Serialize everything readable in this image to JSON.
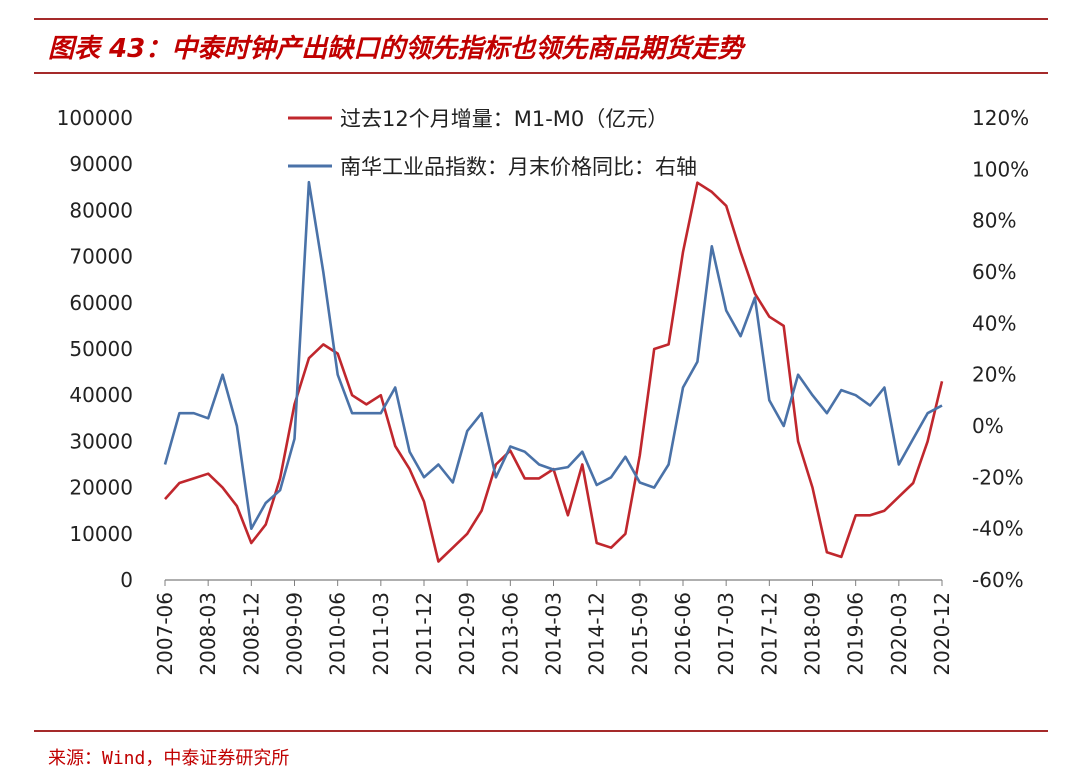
{
  "header": {
    "title": "图表 43：中泰时钟产出缺口的领先指标也领先商品期货走势"
  },
  "footer": {
    "source": "来源：Wind，中泰证券研究所"
  },
  "colors": {
    "series_m1m0": "#c0272d",
    "series_nh": "#4a72a8",
    "accent": "#c00000"
  },
  "chart_data": {
    "type": "line",
    "title": "",
    "legend_position": "top-center",
    "grid": false,
    "left_axis": {
      "min": 0,
      "max": 100000,
      "ticks": [
        0,
        10000,
        20000,
        30000,
        40000,
        50000,
        60000,
        70000,
        80000,
        90000,
        100000
      ]
    },
    "right_axis": {
      "min": -60,
      "max": 120,
      "unit": "%",
      "ticks": [
        -60,
        -40,
        -20,
        0,
        20,
        40,
        60,
        80,
        100,
        120
      ],
      "tick_labels": [
        "-60%",
        "-40%",
        "-20%",
        "0%",
        "20%",
        "40%",
        "60%",
        "80%",
        "100%",
        "120%"
      ]
    },
    "x_ticks": [
      "2007-06",
      "2008-03",
      "2008-12",
      "2009-09",
      "2010-06",
      "2011-03",
      "2011-12",
      "2012-09",
      "2013-06",
      "2014-03",
      "2014-12",
      "2015-09",
      "2016-06",
      "2017-03",
      "2017-12",
      "2018-09",
      "2019-06",
      "2020-03",
      "2020-12"
    ],
    "series": [
      {
        "name": "过去12个月增量：M1-M0（亿元）",
        "axis": "left",
        "points": [
          [
            "2007-06",
            17500
          ],
          [
            "2007-09",
            21000
          ],
          [
            "2007-12",
            22000
          ],
          [
            "2008-03",
            23000
          ],
          [
            "2008-06",
            20000
          ],
          [
            "2008-09",
            16000
          ],
          [
            "2008-12",
            8000
          ],
          [
            "2009-03",
            12000
          ],
          [
            "2009-06",
            22000
          ],
          [
            "2009-09",
            38000
          ],
          [
            "2009-12",
            48000
          ],
          [
            "2010-03",
            51000
          ],
          [
            "2010-06",
            49000
          ],
          [
            "2010-09",
            40000
          ],
          [
            "2010-12",
            38000
          ],
          [
            "2011-03",
            40000
          ],
          [
            "2011-06",
            29000
          ],
          [
            "2011-09",
            24000
          ],
          [
            "2011-12",
            17000
          ],
          [
            "2012-03",
            4000
          ],
          [
            "2012-06",
            7000
          ],
          [
            "2012-09",
            10000
          ],
          [
            "2012-12",
            15000
          ],
          [
            "2013-03",
            25000
          ],
          [
            "2013-06",
            28000
          ],
          [
            "2013-09",
            22000
          ],
          [
            "2013-12",
            22000
          ],
          [
            "2014-03",
            24000
          ],
          [
            "2014-06",
            14000
          ],
          [
            "2014-09",
            25000
          ],
          [
            "2014-12",
            8000
          ],
          [
            "2015-03",
            7000
          ],
          [
            "2015-06",
            10000
          ],
          [
            "2015-09",
            27000
          ],
          [
            "2015-12",
            50000
          ],
          [
            "2016-03",
            51000
          ],
          [
            "2016-06",
            71000
          ],
          [
            "2016-09",
            86000
          ],
          [
            "2016-12",
            84000
          ],
          [
            "2017-03",
            81000
          ],
          [
            "2017-06",
            71000
          ],
          [
            "2017-09",
            62000
          ],
          [
            "2017-12",
            57000
          ],
          [
            "2018-03",
            55000
          ],
          [
            "2018-06",
            30000
          ],
          [
            "2018-09",
            20000
          ],
          [
            "2018-12",
            6000
          ],
          [
            "2019-03",
            5000
          ],
          [
            "2019-06",
            14000
          ],
          [
            "2019-09",
            14000
          ],
          [
            "2019-12",
            15000
          ],
          [
            "2020-03",
            18000
          ],
          [
            "2020-06",
            21000
          ],
          [
            "2020-09",
            30000
          ],
          [
            "2020-12",
            43000
          ]
        ]
      },
      {
        "name": "南华工业品指数：月末价格同比：右轴",
        "axis": "right",
        "points": [
          [
            "2007-06",
            -15
          ],
          [
            "2007-09",
            5
          ],
          [
            "2007-12",
            5
          ],
          [
            "2008-03",
            3
          ],
          [
            "2008-06",
            20
          ],
          [
            "2008-09",
            0
          ],
          [
            "2008-12",
            -40
          ],
          [
            "2009-03",
            -30
          ],
          [
            "2009-06",
            -25
          ],
          [
            "2009-09",
            -5
          ],
          [
            "2009-12",
            95
          ],
          [
            "2010-03",
            60
          ],
          [
            "2010-06",
            20
          ],
          [
            "2010-09",
            5
          ],
          [
            "2010-12",
            5
          ],
          [
            "2011-03",
            5
          ],
          [
            "2011-06",
            15
          ],
          [
            "2011-09",
            -10
          ],
          [
            "2011-12",
            -20
          ],
          [
            "2012-03",
            -15
          ],
          [
            "2012-06",
            -22
          ],
          [
            "2012-09",
            -2
          ],
          [
            "2012-12",
            5
          ],
          [
            "2013-03",
            -20
          ],
          [
            "2013-06",
            -8
          ],
          [
            "2013-09",
            -10
          ],
          [
            "2013-12",
            -15
          ],
          [
            "2014-03",
            -17
          ],
          [
            "2014-06",
            -16
          ],
          [
            "2014-09",
            -10
          ],
          [
            "2014-12",
            -23
          ],
          [
            "2015-03",
            -20
          ],
          [
            "2015-06",
            -12
          ],
          [
            "2015-09",
            -22
          ],
          [
            "2015-12",
            -24
          ],
          [
            "2016-03",
            -15
          ],
          [
            "2016-06",
            15
          ],
          [
            "2016-09",
            25
          ],
          [
            "2016-12",
            70
          ],
          [
            "2017-03",
            45
          ],
          [
            "2017-06",
            35
          ],
          [
            "2017-09",
            50
          ],
          [
            "2017-12",
            10
          ],
          [
            "2018-03",
            0
          ],
          [
            "2018-06",
            20
          ],
          [
            "2018-09",
            12
          ],
          [
            "2018-12",
            5
          ],
          [
            "2019-03",
            14
          ],
          [
            "2019-06",
            12
          ],
          [
            "2019-09",
            8
          ],
          [
            "2019-12",
            15
          ],
          [
            "2020-03",
            -15
          ],
          [
            "2020-06",
            -5
          ],
          [
            "2020-09",
            5
          ],
          [
            "2020-12",
            8
          ]
        ]
      }
    ]
  }
}
